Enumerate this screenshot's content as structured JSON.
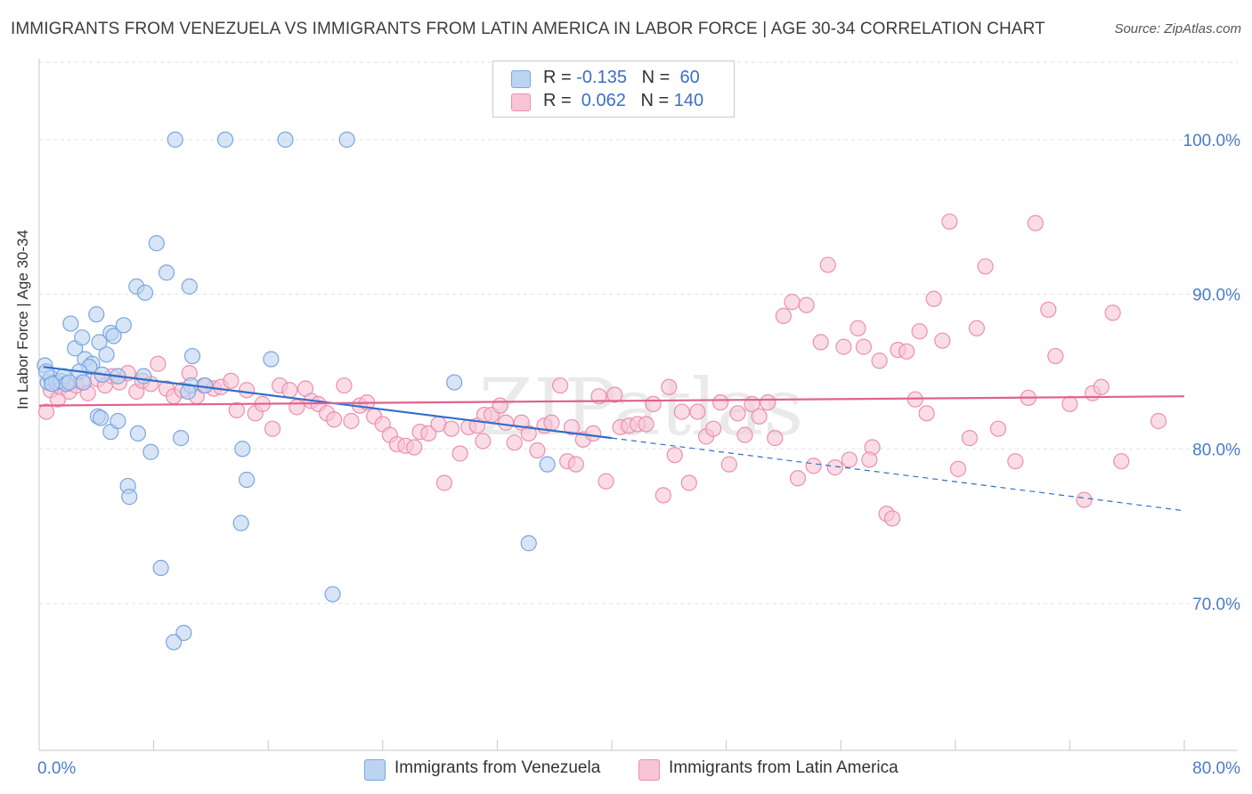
{
  "title": "IMMIGRANTS FROM VENEZUELA VS IMMIGRANTS FROM LATIN AMERICA IN LABOR FORCE | AGE 30-34 CORRELATION CHART",
  "source": "Source: ZipAtlas.com",
  "watermark": "ZIPatlas",
  "colors": {
    "blue_fill": "#bcd4f2",
    "blue_stroke": "#7aa6e0",
    "blue_line": "#2f6ec9",
    "pink_fill": "#f7c5d5",
    "pink_stroke": "#ec8fae",
    "pink_line": "#e0628f",
    "tick_text": "#4a7cc8"
  },
  "legend_top": [
    {
      "r_label": "R = ",
      "r_value": "-0.135",
      "n_label": "N = ",
      "n_value": " 60"
    },
    {
      "r_label": "R = ",
      "r_value": " 0.062",
      "n_label": "N = ",
      "n_value": "140"
    }
  ],
  "chart_data": {
    "type": "scatter",
    "xlabel": "",
    "ylabel": "In Labor Force | Age 30-34",
    "xlim": [
      0,
      80
    ],
    "ylim": [
      60.5,
      105
    ],
    "x_tick_labels": [
      "0.0%",
      "80.0%"
    ],
    "y_ticks": [
      70,
      80,
      90,
      100
    ],
    "y_tick_labels": [
      "70.0%",
      "80.0%",
      "90.0%",
      "100.0%"
    ],
    "grid": true,
    "legend_position": "top-center",
    "series": [
      {
        "name": "Immigrants from Venezuela",
        "trend": {
          "x": [
            0.3,
            40
          ],
          "y": [
            85.3,
            80.7
          ],
          "dashed_to": [
            80,
            76.0
          ]
        },
        "points": [
          [
            0.4,
            85.4
          ],
          [
            0.6,
            84.3
          ],
          [
            0.8,
            84.6
          ],
          [
            0.5,
            85.0
          ],
          [
            1.2,
            84.3
          ],
          [
            1.5,
            84.4
          ],
          [
            1.7,
            84.7
          ],
          [
            1.9,
            84.2
          ],
          [
            2.2,
            88.1
          ],
          [
            2.5,
            86.5
          ],
          [
            3.0,
            87.2
          ],
          [
            3.2,
            85.8
          ],
          [
            3.7,
            85.5
          ],
          [
            4.2,
            86.9
          ],
          [
            4.4,
            84.8
          ],
          [
            4.0,
            88.7
          ],
          [
            4.7,
            86.1
          ],
          [
            5.0,
            87.5
          ],
          [
            5.2,
            87.3
          ],
          [
            5.9,
            88.0
          ],
          [
            3.5,
            85.3
          ],
          [
            2.8,
            85.0
          ],
          [
            6.8,
            90.5
          ],
          [
            7.4,
            90.1
          ],
          [
            8.2,
            93.3
          ],
          [
            8.9,
            91.4
          ],
          [
            10.5,
            90.5
          ],
          [
            9.5,
            100.0
          ],
          [
            13.0,
            100.0
          ],
          [
            17.2,
            100.0
          ],
          [
            21.5,
            100.0
          ],
          [
            10.7,
            86.0
          ],
          [
            10.6,
            84.1
          ],
          [
            11.6,
            84.1
          ],
          [
            16.2,
            85.8
          ],
          [
            5.5,
            84.7
          ],
          [
            7.3,
            84.7
          ],
          [
            4.1,
            82.1
          ],
          [
            4.3,
            82.0
          ],
          [
            5.0,
            81.1
          ],
          [
            5.5,
            81.8
          ],
          [
            6.9,
            81.0
          ],
          [
            9.9,
            80.7
          ],
          [
            7.8,
            79.8
          ],
          [
            14.2,
            80.0
          ],
          [
            6.2,
            77.6
          ],
          [
            6.3,
            76.9
          ],
          [
            14.5,
            78.0
          ],
          [
            14.1,
            75.2
          ],
          [
            8.5,
            72.3
          ],
          [
            20.5,
            70.6
          ],
          [
            10.1,
            68.1
          ],
          [
            9.4,
            67.5
          ],
          [
            29.0,
            84.3
          ],
          [
            35.5,
            79.0
          ],
          [
            34.2,
            73.9
          ],
          [
            10.4,
            83.7
          ],
          [
            2.1,
            84.3
          ],
          [
            3.1,
            84.3
          ],
          [
            0.9,
            84.2
          ]
        ]
      },
      {
        "name": "Immigrants from Latin America",
        "trend": {
          "x": [
            0,
            80
          ],
          "y": [
            82.8,
            83.4
          ]
        },
        "points": [
          [
            0.5,
            82.4
          ],
          [
            0.8,
            83.8
          ],
          [
            1.3,
            83.2
          ],
          [
            1.5,
            84.0
          ],
          [
            2.1,
            83.7
          ],
          [
            2.6,
            84.1
          ],
          [
            3.0,
            84.3
          ],
          [
            3.4,
            83.6
          ],
          [
            4.1,
            84.5
          ],
          [
            4.6,
            84.1
          ],
          [
            5.1,
            84.7
          ],
          [
            5.6,
            84.3
          ],
          [
            6.2,
            84.9
          ],
          [
            6.8,
            83.7
          ],
          [
            7.2,
            84.4
          ],
          [
            7.8,
            84.2
          ],
          [
            8.3,
            85.5
          ],
          [
            8.9,
            83.9
          ],
          [
            9.4,
            83.4
          ],
          [
            10.0,
            83.8
          ],
          [
            10.5,
            84.9
          ],
          [
            11.0,
            83.4
          ],
          [
            11.5,
            84.1
          ],
          [
            12.2,
            83.9
          ],
          [
            12.7,
            84.0
          ],
          [
            13.4,
            84.4
          ],
          [
            13.8,
            82.5
          ],
          [
            14.5,
            83.8
          ],
          [
            15.1,
            82.3
          ],
          [
            15.6,
            82.9
          ],
          [
            16.3,
            81.3
          ],
          [
            16.8,
            84.1
          ],
          [
            17.5,
            83.8
          ],
          [
            18.0,
            82.7
          ],
          [
            18.6,
            83.9
          ],
          [
            19.0,
            83.1
          ],
          [
            19.5,
            82.9
          ],
          [
            20.1,
            82.3
          ],
          [
            20.6,
            81.9
          ],
          [
            21.3,
            84.1
          ],
          [
            21.8,
            81.8
          ],
          [
            22.4,
            82.8
          ],
          [
            22.9,
            83.0
          ],
          [
            23.4,
            82.1
          ],
          [
            24.0,
            81.6
          ],
          [
            24.5,
            80.9
          ],
          [
            25.0,
            80.3
          ],
          [
            25.6,
            80.2
          ],
          [
            26.2,
            80.1
          ],
          [
            26.6,
            81.1
          ],
          [
            27.2,
            81.0
          ],
          [
            27.9,
            81.6
          ],
          [
            28.3,
            77.8
          ],
          [
            28.8,
            81.3
          ],
          [
            29.4,
            79.7
          ],
          [
            30.0,
            81.4
          ],
          [
            30.6,
            81.5
          ],
          [
            31.1,
            82.2
          ],
          [
            31.6,
            82.2
          ],
          [
            32.2,
            82.8
          ],
          [
            32.6,
            81.7
          ],
          [
            33.2,
            80.4
          ],
          [
            33.7,
            81.7
          ],
          [
            34.2,
            81.0
          ],
          [
            34.8,
            79.9
          ],
          [
            35.3,
            81.5
          ],
          [
            35.8,
            81.7
          ],
          [
            36.4,
            84.1
          ],
          [
            36.9,
            79.2
          ],
          [
            37.5,
            79.0
          ],
          [
            38.0,
            80.6
          ],
          [
            38.7,
            81.0
          ],
          [
            39.1,
            83.4
          ],
          [
            39.6,
            77.9
          ],
          [
            40.2,
            83.5
          ],
          [
            40.6,
            81.4
          ],
          [
            41.2,
            81.5
          ],
          [
            41.8,
            81.6
          ],
          [
            42.4,
            81.6
          ],
          [
            42.9,
            82.9
          ],
          [
            43.6,
            77.0
          ],
          [
            44.0,
            84.0
          ],
          [
            44.4,
            79.6
          ],
          [
            44.9,
            82.4
          ],
          [
            45.4,
            77.8
          ],
          [
            46.0,
            82.4
          ],
          [
            46.6,
            80.8
          ],
          [
            47.1,
            81.3
          ],
          [
            47.6,
            83.0
          ],
          [
            48.2,
            79.0
          ],
          [
            48.8,
            82.3
          ],
          [
            49.3,
            80.9
          ],
          [
            49.8,
            82.9
          ],
          [
            50.3,
            82.1
          ],
          [
            50.9,
            83.0
          ],
          [
            51.4,
            80.7
          ],
          [
            52.0,
            88.6
          ],
          [
            52.6,
            89.5
          ],
          [
            53.0,
            78.1
          ],
          [
            53.6,
            89.3
          ],
          [
            54.1,
            78.9
          ],
          [
            54.6,
            86.9
          ],
          [
            55.1,
            91.9
          ],
          [
            55.6,
            78.8
          ],
          [
            56.2,
            86.6
          ],
          [
            56.6,
            79.3
          ],
          [
            57.2,
            87.8
          ],
          [
            57.6,
            86.6
          ],
          [
            58.2,
            80.1
          ],
          [
            58.7,
            85.7
          ],
          [
            59.2,
            75.8
          ],
          [
            59.6,
            75.5
          ],
          [
            60.0,
            86.4
          ],
          [
            60.6,
            86.3
          ],
          [
            61.2,
            83.2
          ],
          [
            61.5,
            87.6
          ],
          [
            62.0,
            82.3
          ],
          [
            62.5,
            89.7
          ],
          [
            63.1,
            87.0
          ],
          [
            63.6,
            94.7
          ],
          [
            64.2,
            78.7
          ],
          [
            65.0,
            80.7
          ],
          [
            65.5,
            87.8
          ],
          [
            66.1,
            91.8
          ],
          [
            67.0,
            81.3
          ],
          [
            68.2,
            79.2
          ],
          [
            69.1,
            83.3
          ],
          [
            69.6,
            94.6
          ],
          [
            70.5,
            89.0
          ],
          [
            71.0,
            86.0
          ],
          [
            72.0,
            82.9
          ],
          [
            73.0,
            76.7
          ],
          [
            73.6,
            83.6
          ],
          [
            74.2,
            84.0
          ],
          [
            75.0,
            88.8
          ],
          [
            75.6,
            79.2
          ],
          [
            78.2,
            81.8
          ],
          [
            58.0,
            79.3
          ],
          [
            37.2,
            81.4
          ],
          [
            31.0,
            80.5
          ]
        ]
      }
    ]
  },
  "legend_bottom": [
    {
      "label": "Immigrants from Venezuela"
    },
    {
      "label": "Immigrants from Latin America"
    }
  ]
}
